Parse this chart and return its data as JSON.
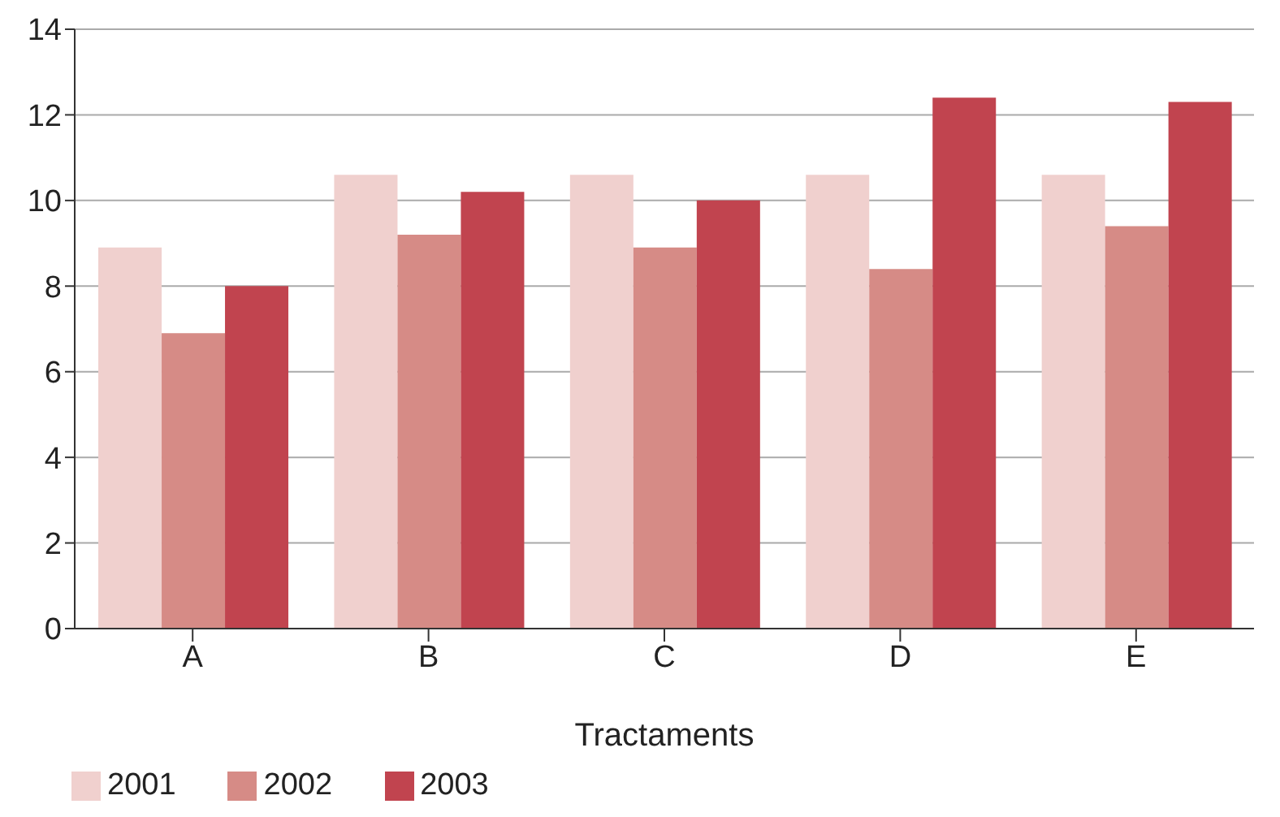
{
  "chart_data": {
    "type": "bar",
    "xlabel": "Tractaments",
    "categories": [
      "A",
      "B",
      "C",
      "D",
      "E"
    ],
    "series": [
      {
        "name": "2001",
        "color": "#f0d0ce",
        "values": [
          8.9,
          10.6,
          10.6,
          10.6,
          10.6
        ]
      },
      {
        "name": "2002",
        "color": "#d68b86",
        "values": [
          6.9,
          9.2,
          8.9,
          8.4,
          9.4
        ]
      },
      {
        "name": "2003",
        "color": "#c1444f",
        "values": [
          8.0,
          10.2,
          10.0,
          12.4,
          12.3
        ]
      }
    ],
    "ylim": [
      0,
      14
    ],
    "yticks": [
      0,
      2,
      4,
      6,
      8,
      10,
      12,
      14
    ],
    "grid": "y",
    "legend": "bottom left"
  }
}
